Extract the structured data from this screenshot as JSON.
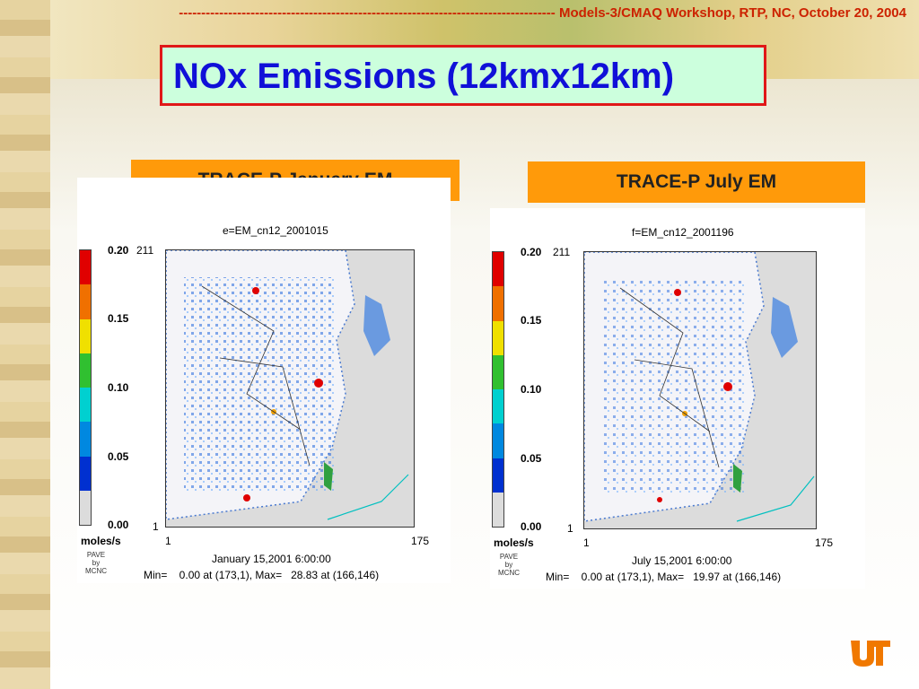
{
  "header": {
    "text": "------------------------------------------------------------------------------------ Models-3/CMAQ Workshop, RTP, NC, October 20, 2004"
  },
  "title": "NOx Emissions (12kmx12km)",
  "panels": [
    {
      "label": "TRACE-P January EM",
      "fig_title": "e=EM_cn12_2001015",
      "date": "January 15,2001 6:00:00",
      "minmax": "Min=    0.00 at (173,1), Max=   28.83 at (166,146)"
    },
    {
      "label": "TRACE-P July EM",
      "fig_title": "f=EM_cn12_2001196",
      "date": "July 15,2001 6:00:00",
      "minmax": "Min=    0.00 at (173,1), Max=   19.97 at (166,146)"
    }
  ],
  "colorbar": {
    "ticks": [
      "0.20",
      "0.15",
      "0.10",
      "0.05",
      "0.00"
    ],
    "unit": "moles/s",
    "colors": [
      "#e00000",
      "#f07000",
      "#f0e000",
      "#30c030",
      "#00d0d0",
      "#0088e0",
      "#0030d0",
      "#dcdcdc"
    ]
  },
  "axes": {
    "y_top": "211",
    "y_bottom": "1",
    "x_left": "1",
    "x_right": "175"
  },
  "pave_credit": [
    "PAVE",
    "by",
    "MCNC"
  ],
  "logo_alt": "UT"
}
